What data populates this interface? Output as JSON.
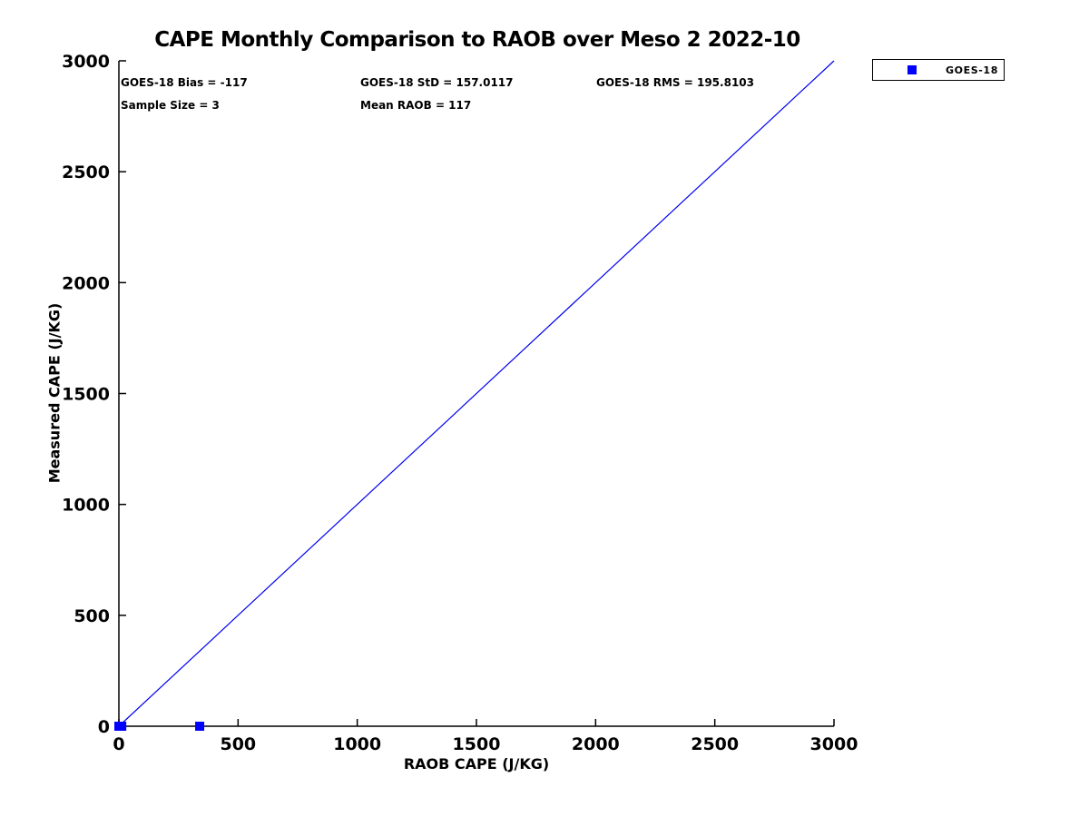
{
  "chart_data": {
    "type": "scatter",
    "title": "CAPE Monthly Comparison to RAOB over Meso 2 2022-10",
    "xlabel": "RAOB CAPE (J/KG)",
    "ylabel": "Measured CAPE (J/KG)",
    "xlim": [
      0,
      3000
    ],
    "ylim": [
      0,
      3000
    ],
    "xticks": [
      0,
      500,
      1000,
      1500,
      2000,
      2500,
      3000
    ],
    "yticks": [
      0,
      500,
      1000,
      1500,
      2000,
      2500,
      3000
    ],
    "grid": false,
    "series": [
      {
        "name": "GOES-18",
        "marker": "square",
        "color": "#0000ff",
        "points": [
          [
            0,
            0
          ],
          [
            12,
            0
          ],
          [
            339,
            0
          ]
        ]
      }
    ],
    "reference_line": {
      "x": [
        0,
        3000
      ],
      "y": [
        0,
        3000
      ],
      "color": "#0000ee"
    },
    "annotations": {
      "bias": "GOES-18 Bias = -117",
      "std": "GOES-18 StD = 157.0117",
      "rms": "GOES-18 RMS = 195.8103",
      "sample_size": "Sample Size = 3",
      "mean_raob": "Mean RAOB = 117"
    },
    "legend": {
      "position": "outside-top-right",
      "entries": [
        {
          "label": "GOES-18",
          "marker": "square",
          "color": "#0000ff"
        }
      ]
    },
    "colors": {
      "axis": "#000000",
      "background": "#ffffff",
      "accent": "#0000ff"
    }
  }
}
